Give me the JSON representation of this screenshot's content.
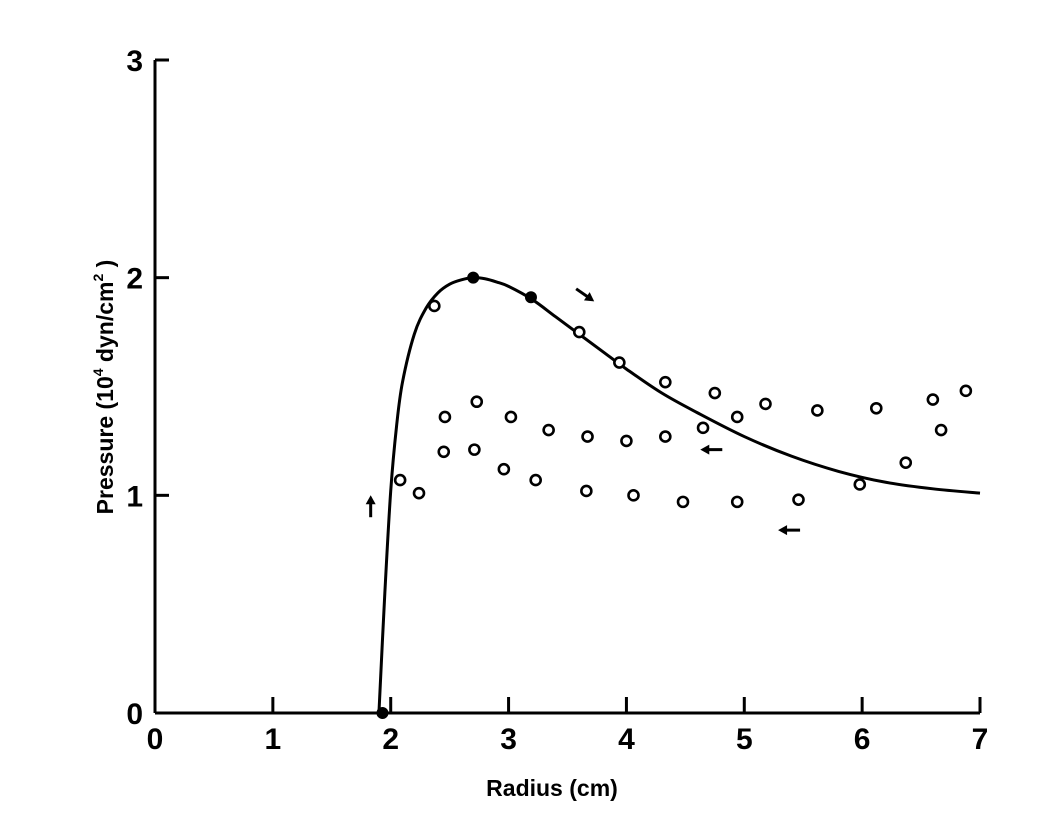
{
  "chart_data": {
    "type": "scatter",
    "xlabel": "Radius (cm)",
    "ylabel_parts": [
      "Pressure (10",
      "4",
      " dyn/cm",
      "2",
      " )"
    ],
    "xlim": [
      0,
      7
    ],
    "ylim": [
      0,
      3
    ],
    "xticks": [
      0,
      1,
      2,
      3,
      4,
      5,
      6,
      7
    ],
    "xtick_labels": [
      "0",
      "1",
      "2",
      "3",
      "4",
      "5",
      "6",
      "7"
    ],
    "yticks": [
      0,
      1,
      2,
      3
    ],
    "ytick_labels": [
      "0",
      "1",
      "2",
      "3"
    ],
    "grid": false,
    "series": [
      {
        "kind": "line",
        "x": [
          1.9,
          1.95,
          2.0,
          2.05,
          2.1,
          2.2,
          2.3,
          2.4,
          2.5,
          2.6,
          2.7,
          2.8,
          2.9,
          3.0,
          3.2,
          3.4,
          3.6,
          3.8,
          4.0,
          4.3,
          4.6,
          5.0,
          5.4,
          5.8,
          6.2,
          6.6,
          7.0
        ],
        "y": [
          0.0,
          0.55,
          1.02,
          1.32,
          1.52,
          1.74,
          1.86,
          1.93,
          1.97,
          1.99,
          2.0,
          1.995,
          1.98,
          1.96,
          1.9,
          1.82,
          1.74,
          1.66,
          1.58,
          1.47,
          1.38,
          1.27,
          1.18,
          1.11,
          1.06,
          1.03,
          1.01
        ]
      },
      {
        "kind": "filled-points",
        "x": [
          1.93,
          2.7,
          3.19
        ],
        "y": [
          0.0,
          2.0,
          1.91
        ]
      },
      {
        "kind": "open-points",
        "x": [
          2.37,
          3.6,
          3.94,
          4.33,
          4.75,
          4.94,
          5.18,
          5.62,
          6.12,
          6.6,
          6.88,
          2.46,
          2.73,
          3.02,
          3.34,
          3.67,
          4.0,
          4.33,
          4.65,
          6.67,
          2.45,
          2.71,
          2.96,
          3.23,
          3.66,
          4.06,
          4.48,
          4.94,
          5.46,
          5.98,
          6.37,
          2.08,
          2.24
        ],
        "y": [
          1.87,
          1.75,
          1.61,
          1.52,
          1.47,
          1.36,
          1.42,
          1.39,
          1.4,
          1.44,
          1.48,
          1.36,
          1.43,
          1.36,
          1.3,
          1.27,
          1.25,
          1.27,
          1.31,
          1.3,
          1.2,
          1.21,
          1.12,
          1.07,
          1.02,
          1.0,
          0.97,
          0.97,
          0.98,
          1.05,
          1.15,
          1.07,
          1.01
        ]
      }
    ],
    "arrows": [
      {
        "x": 1.83,
        "y": 0.95,
        "direction": "up"
      },
      {
        "x": 3.65,
        "y": 1.92,
        "direction": "down-right"
      },
      {
        "x": 4.72,
        "y": 1.21,
        "direction": "left"
      },
      {
        "x": 5.38,
        "y": 0.84,
        "direction": "left"
      }
    ]
  }
}
